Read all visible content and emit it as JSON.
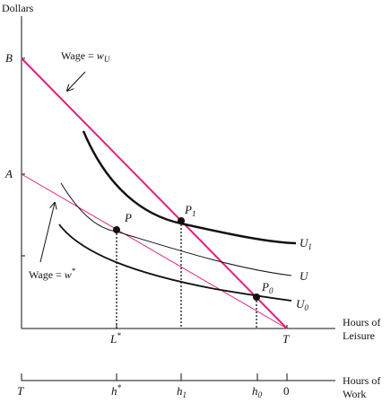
{
  "axes": {
    "y_label": "Dollars",
    "x_label_line1": "Hours of",
    "x_label_line2": "Leisure",
    "work_label_line1": "Hours of",
    "work_label_line2": "Work"
  },
  "y_ticks": {
    "b": "B",
    "a": "A"
  },
  "wage_labels": {
    "upper_prefix": "Wage = ",
    "upper_w": "w",
    "upper_sub": "U",
    "lower_prefix": "Wage = ",
    "lower_w": "w",
    "lower_sup": "*"
  },
  "points": {
    "p": "P",
    "p1_base": "P",
    "p1_sub": "1",
    "p0_base": "P",
    "p0_sub": "0"
  },
  "curves": {
    "u1_base": "U",
    "u1_sub": "1",
    "u": "U",
    "u0_base": "U",
    "u0_sub": "0"
  },
  "leisure_ticks": {
    "lstar_base": "L",
    "lstar_sup": "*",
    "t": "T"
  },
  "work_ticks": {
    "t": "T",
    "hstar_base": "h",
    "hstar_sup": "*",
    "h1_base": "h",
    "h1_sub": "1",
    "h0_base": "h",
    "h0_sub": "0",
    "zero": "0"
  },
  "colors": {
    "budget_line": "#e0207a",
    "curves": "#111111",
    "axes": "#111111"
  }
}
